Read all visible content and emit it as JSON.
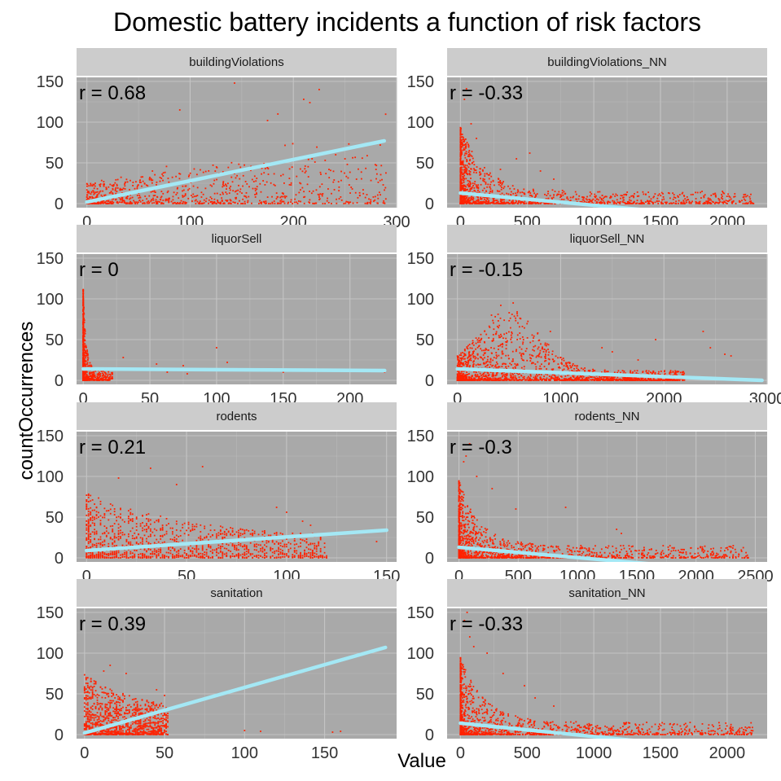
{
  "chart_data": {
    "type": "scatter",
    "title": "Domestic battery incidents a function of risk factors",
    "xlabel": "Value",
    "ylabel": "countOccurrences",
    "colors": {
      "panel_bg": "#a9a9a9",
      "grid": "#c4c4c4",
      "strip_bg": "#cccccc",
      "points": "#ff2200",
      "fit_line": "#a4e8f5"
    },
    "facets": [
      {
        "name": "buildingViolations",
        "r_label": "r = 0.68",
        "xlim": [
          -10,
          300
        ],
        "ylim": [
          -5,
          155
        ],
        "x_ticks": [
          0,
          100,
          200,
          300
        ],
        "y_ticks": [
          0,
          50,
          100,
          150
        ],
        "fit": {
          "x": [
            0,
            288
          ],
          "y": [
            2,
            77
          ]
        },
        "cloud": {
          "shape": "rising",
          "x_max": 290,
          "bulk": 120,
          "density": 900
        },
        "outliers": [
          [
            143,
            148
          ],
          [
            225,
            140
          ],
          [
            210,
            128
          ],
          [
            216,
            124
          ],
          [
            185,
            110
          ],
          [
            175,
            102
          ],
          [
            90,
            115
          ],
          [
            280,
            75
          ],
          [
            287,
            23
          ],
          [
            256,
            20
          ],
          [
            241,
            60
          ],
          [
            250,
            55
          ]
        ]
      },
      {
        "name": "buildingViolations_NN",
        "r_label": "r = -0.33",
        "xlim": [
          -100,
          2300
        ],
        "ylim": [
          -5,
          155
        ],
        "x_ticks": [
          0,
          500,
          1000,
          1500,
          2000
        ],
        "y_ticks": [
          0,
          50,
          100,
          150
        ],
        "fit": {
          "x": [
            0,
            2200
          ],
          "y": [
            13,
            -20
          ]
        },
        "cloud": {
          "shape": "decay",
          "x_max": 2200,
          "bulk": 300,
          "density": 1500
        },
        "outliers": [
          [
            45,
            141
          ],
          [
            30,
            128
          ],
          [
            80,
            98
          ],
          [
            120,
            80
          ],
          [
            300,
            42
          ],
          [
            520,
            62
          ],
          [
            600,
            40
          ],
          [
            420,
            55
          ],
          [
            700,
            30
          ]
        ]
      },
      {
        "name": "liquorSell",
        "r_label": "r = 0",
        "xlim": [
          -5,
          235
        ],
        "ylim": [
          -5,
          155
        ],
        "x_ticks": [
          0,
          50,
          100,
          150,
          200
        ],
        "y_ticks": [
          0,
          50,
          100,
          150
        ],
        "fit": {
          "x": [
            0,
            226
          ],
          "y": [
            14,
            12
          ]
        },
        "cloud": {
          "shape": "spike",
          "x_max": 226,
          "bulk": 8,
          "density": 800
        },
        "outliers": [
          [
            30,
            28
          ],
          [
            55,
            20
          ],
          [
            75,
            18
          ],
          [
            100,
            40
          ],
          [
            108,
            22
          ],
          [
            78,
            8
          ],
          [
            63,
            10
          ],
          [
            128,
            12
          ],
          [
            150,
            10
          ],
          [
            205,
            12
          ],
          [
            226,
            10
          ]
        ]
      },
      {
        "name": "liquorSell_NN",
        "r_label": "r = -0.15",
        "xlim": [
          -100,
          3000
        ],
        "ylim": [
          -5,
          155
        ],
        "x_ticks": [
          0,
          1000,
          2000,
          3000
        ],
        "y_ticks": [
          0,
          50,
          100,
          150
        ],
        "fit": {
          "x": [
            0,
            2950
          ],
          "y": [
            14,
            0
          ]
        },
        "cloud": {
          "shape": "hump",
          "x_max": 2950,
          "bulk": 600,
          "density": 1800
        },
        "outliers": [
          [
            540,
            95
          ],
          [
            420,
            92
          ],
          [
            330,
            80
          ],
          [
            900,
            60
          ],
          [
            1400,
            40
          ],
          [
            1920,
            50
          ],
          [
            2380,
            60
          ],
          [
            2450,
            40
          ],
          [
            2590,
            32
          ],
          [
            2650,
            30
          ],
          [
            1500,
            35
          ],
          [
            1750,
            25
          ]
        ]
      },
      {
        "name": "rodents",
        "r_label": "r = 0.21",
        "xlim": [
          -5,
          155
        ],
        "ylim": [
          -5,
          155
        ],
        "x_ticks": [
          0,
          50,
          100,
          150
        ],
        "y_ticks": [
          0,
          50,
          100,
          150
        ],
        "fit": {
          "x": [
            0,
            150
          ],
          "y": [
            9,
            34
          ]
        },
        "cloud": {
          "shape": "columns",
          "x_max": 150,
          "bulk": 60,
          "density": 1300
        },
        "outliers": [
          [
            58,
            112
          ],
          [
            32,
            110
          ],
          [
            16,
            98
          ],
          [
            45,
            90
          ],
          [
            95,
            62
          ],
          [
            100,
            56
          ],
          [
            108,
            45
          ],
          [
            112,
            40
          ],
          [
            145,
            20
          ]
        ]
      },
      {
        "name": "rodents_NN",
        "r_label": "r = -0.3",
        "xlim": [
          -100,
          2600
        ],
        "ylim": [
          -5,
          155
        ],
        "x_ticks": [
          0,
          500,
          1000,
          1500,
          2000,
          2500
        ],
        "y_ticks": [
          0,
          50,
          100,
          150
        ],
        "fit": {
          "x": [
            0,
            2450
          ],
          "y": [
            13,
            -18
          ]
        },
        "cloud": {
          "shape": "decay",
          "x_max": 2450,
          "bulk": 300,
          "density": 1500
        },
        "outliers": [
          [
            90,
            140
          ],
          [
            60,
            125
          ],
          [
            40,
            118
          ],
          [
            150,
            100
          ],
          [
            280,
            85
          ],
          [
            480,
            60
          ],
          [
            900,
            62
          ],
          [
            1330,
            35
          ],
          [
            1370,
            30
          ],
          [
            2100,
            8
          ]
        ]
      },
      {
        "name": "sanitation",
        "r_label": "r = 0.39",
        "xlim": [
          -5,
          195
        ],
        "ylim": [
          -5,
          155
        ],
        "x_ticks": [
          0,
          50,
          100,
          150
        ],
        "y_ticks": [
          0,
          50,
          100,
          150
        ],
        "fit": {
          "x": [
            0,
            188
          ],
          "y": [
            2,
            107
          ]
        },
        "cloud": {
          "shape": "columns_narrow",
          "x_max": 52,
          "bulk": 30,
          "density": 1100
        },
        "outliers": [
          [
            16,
            85
          ],
          [
            12,
            78
          ],
          [
            26,
            75
          ],
          [
            45,
            55
          ],
          [
            50,
            48
          ],
          [
            48,
            20
          ],
          [
            100,
            5
          ],
          [
            110,
            4
          ],
          [
            155,
            3
          ],
          [
            160,
            4
          ]
        ]
      },
      {
        "name": "sanitation_NN",
        "r_label": "r = -0.33",
        "xlim": [
          -100,
          2300
        ],
        "ylim": [
          -5,
          155
        ],
        "x_ticks": [
          0,
          500,
          1000,
          1500,
          2000
        ],
        "y_ticks": [
          0,
          50,
          100,
          150
        ],
        "fit": {
          "x": [
            0,
            2200
          ],
          "y": [
            14,
            -22
          ]
        },
        "cloud": {
          "shape": "decay",
          "x_max": 2200,
          "bulk": 300,
          "density": 1500
        },
        "outliers": [
          [
            50,
            150
          ],
          [
            30,
            140
          ],
          [
            70,
            120
          ],
          [
            100,
            108
          ],
          [
            200,
            100
          ],
          [
            320,
            75
          ],
          [
            480,
            60
          ],
          [
            560,
            45
          ],
          [
            700,
            35
          ]
        ]
      }
    ]
  }
}
